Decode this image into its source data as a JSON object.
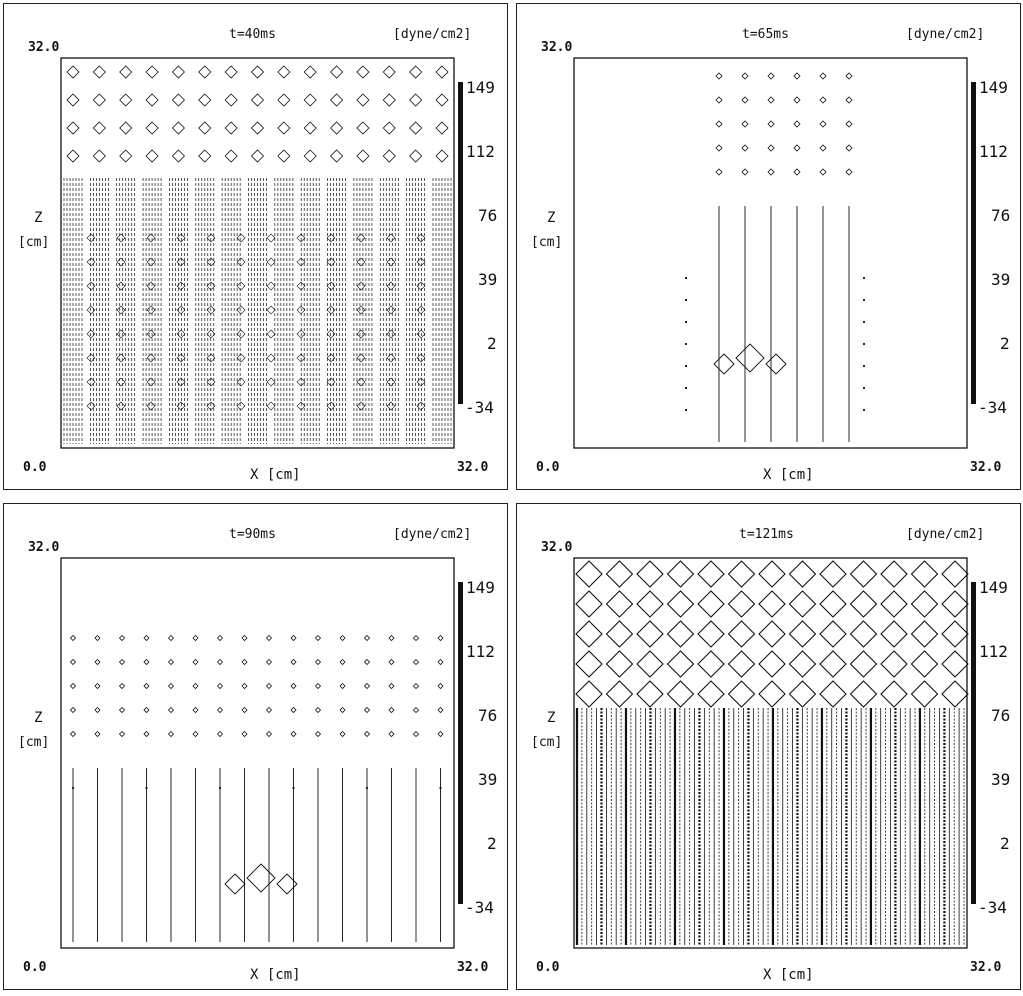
{
  "chart_data": [
    {
      "type": "heatmap",
      "title": "t=40ms",
      "unit": "[dyne/cm2]",
      "xlabel": "X [cm]",
      "ylabel": "Z",
      "ylabel_unit": "[cm]",
      "x_range": [
        0.0,
        32.0
      ],
      "z_range": [
        0.0,
        32.0
      ],
      "x_tick_labels": [
        "0.0",
        "32.0"
      ],
      "z_tick_labels": [
        "32.0"
      ],
      "colorbar_labels": [
        "149",
        "112",
        "76",
        "39",
        "2",
        "-34"
      ],
      "colorbar_range": [
        -34,
        149
      ],
      "density": "dense"
    },
    {
      "type": "heatmap",
      "title": "t=65ms",
      "unit": "[dyne/cm2]",
      "xlabel": "X [cm]",
      "ylabel": "Z",
      "ylabel_unit": "[cm]",
      "x_range": [
        0.0,
        32.0
      ],
      "z_range": [
        0.0,
        32.0
      ],
      "x_tick_labels": [
        "0.0",
        "32.0"
      ],
      "z_tick_labels": [
        "32.0"
      ],
      "colorbar_labels": [
        "149",
        "112",
        "76",
        "39",
        "2",
        "-34"
      ],
      "colorbar_range": [
        -34,
        149
      ],
      "density": "sparse"
    },
    {
      "type": "heatmap",
      "title": "t=90ms",
      "unit": "[dyne/cm2]",
      "xlabel": "X [cm]",
      "ylabel": "Z",
      "ylabel_unit": "[cm]",
      "x_range": [
        0.0,
        32.0
      ],
      "z_range": [
        0.0,
        32.0
      ],
      "x_tick_labels": [
        "0.0",
        "32.0"
      ],
      "z_tick_labels": [
        "32.0"
      ],
      "colorbar_labels": [
        "149",
        "112",
        "76",
        "39",
        "2",
        "-34"
      ],
      "colorbar_range": [
        -34,
        149
      ],
      "density": "sparse"
    },
    {
      "type": "heatmap",
      "title": "t=121ms",
      "unit": "[dyne/cm2]",
      "xlabel": "X [cm]",
      "ylabel": "Z",
      "ylabel_unit": "[cm]",
      "x_range": [
        0.0,
        32.0
      ],
      "z_range": [
        0.0,
        32.0
      ],
      "x_tick_labels": [
        "0.0",
        "32.0"
      ],
      "z_tick_labels": [
        "32.0"
      ],
      "colorbar_labels": [
        "149",
        "112",
        "76",
        "39",
        "2",
        "-34"
      ],
      "colorbar_range": [
        -34,
        149
      ],
      "density": "very dense"
    }
  ],
  "colors": {
    "ink": "#111111",
    "background": "#ffffff"
  }
}
